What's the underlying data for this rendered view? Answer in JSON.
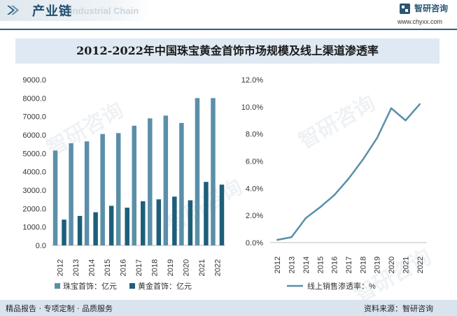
{
  "header": {
    "title": "产业链",
    "subtitle_en": "Industrial Chain",
    "brand_name": "智研咨询",
    "brand_url": "www.chyxx.com"
  },
  "chart_title": "2012-2022年中国珠宝黄金首饰市场规模及线上渠道渗透率",
  "footer": {
    "left": "精品报告 · 专项定制 · 品质服务",
    "right": "资料来源：智研咨询"
  },
  "watermark": "智研咨询",
  "colors": {
    "jewelry_bar": "#5b8fa8",
    "gold_bar": "#1d5f7a",
    "line": "#5b8fa8",
    "rule": "#2b5e86",
    "title_bg": "#dfe9f3"
  },
  "chart_data": [
    {
      "type": "bar",
      "categories": [
        "2012",
        "2013",
        "2014",
        "2015",
        "2016",
        "2017",
        "2018",
        "2019",
        "2020",
        "2021",
        "2022"
      ],
      "series": [
        {
          "name": "珠宝首饰：亿元",
          "values": [
            5150,
            5550,
            5650,
            6050,
            6100,
            6500,
            6900,
            7050,
            6650,
            8000,
            8000
          ]
        },
        {
          "name": "黄金首饰：亿元",
          "values": [
            1400,
            1600,
            1800,
            2150,
            2050,
            2400,
            2500,
            2650,
            2450,
            3450,
            3300
          ]
        }
      ],
      "ylim": [
        0,
        9000
      ],
      "yticks": [
        "0.0",
        "1000.0",
        "2000.0",
        "3000.0",
        "4000.0",
        "5000.0",
        "6000.0",
        "7000.0",
        "8000.0",
        "9000.0"
      ],
      "legend": "bottom"
    },
    {
      "type": "line",
      "categories": [
        "2012",
        "2013",
        "2014",
        "2015",
        "2016",
        "2017",
        "2018",
        "2019",
        "2020",
        "2021",
        "2022"
      ],
      "series": [
        {
          "name": "线上销售渗透率：%",
          "values": [
            0.2,
            0.4,
            1.8,
            2.6,
            3.5,
            4.7,
            6.1,
            7.7,
            9.9,
            9.0,
            10.2
          ]
        }
      ],
      "ylim": [
        0,
        12
      ],
      "yticks": [
        "0.0%",
        "2.0%",
        "4.0%",
        "6.0%",
        "8.0%",
        "10.0%",
        "12.0%"
      ],
      "legend": "bottom"
    }
  ]
}
